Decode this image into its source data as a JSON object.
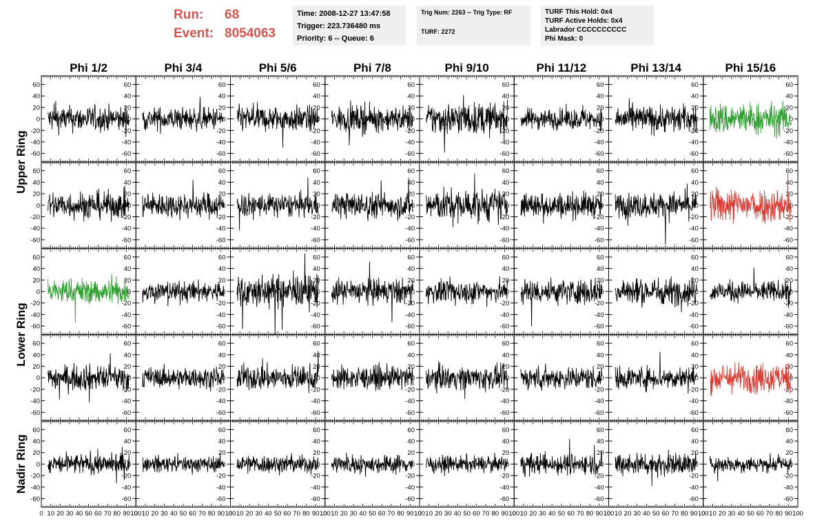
{
  "header": {
    "run_label": "Run:",
    "run_value": "68",
    "event_label": "Event:",
    "event_value": "8054063",
    "time": "Time: 2008-12-27 13:47:58",
    "trigger": "Trigger: 223.736480 ms",
    "priority": "Priority: 6 -- Queue: 6",
    "trig": "Trig Num: 2263 -- Trig Type: RF",
    "turf": "TURF: 2272",
    "turf_hold": "TURF This Hold: 0x4",
    "turf_active": "TURF Active Holds: 0x4",
    "labrador": "Labrador CCCCCCCCCC",
    "phi_mask": "Phi Mask: 0"
  },
  "colors": {
    "normal": "#000000",
    "green": "#2e9e2e",
    "red": "#d93a32",
    "title": "#d9534f",
    "panel": "#efefef"
  },
  "chart_data": {
    "type": "line",
    "columns": [
      "Phi 1/2",
      "Phi 3/4",
      "Phi 5/6",
      "Phi 7/8",
      "Phi 9/10",
      "Phi 11/12",
      "Phi 13/14",
      "Phi 15/16"
    ],
    "ring_labels": [
      "Upper Ring",
      "Lower Ring",
      "Nadir Ring"
    ],
    "rows_per_ring": [
      2,
      2,
      1
    ],
    "xlim": [
      0,
      100
    ],
    "ylim": [
      -75,
      75
    ],
    "x_ticks": [
      0,
      10,
      20,
      30,
      40,
      50,
      60,
      70,
      80,
      90,
      100
    ],
    "x_tick_labels": [
      "0",
      "10",
      "20",
      "30",
      "40",
      "50",
      "60",
      "70",
      "80",
      "90",
      "100"
    ],
    "y_ticks": [
      -60,
      -40,
      -20,
      0,
      20,
      40,
      60
    ],
    "y_tick_labels": [
      "-60",
      "-40",
      "-20",
      "0",
      "20",
      "40",
      "60"
    ],
    "series_amplitude": [
      [
        11,
        10,
        11,
        11,
        14,
        9,
        12,
        14
      ],
      [
        12,
        11,
        10,
        11,
        14,
        11,
        11,
        15
      ],
      [
        11,
        9,
        14,
        11,
        10,
        11,
        12,
        9
      ],
      [
        11,
        9,
        11,
        10,
        10,
        10,
        10,
        13
      ],
      [
        9,
        7,
        8,
        8,
        7,
        9,
        10,
        7
      ]
    ],
    "series_colors": [
      [
        "normal",
        "normal",
        "normal",
        "normal",
        "normal",
        "normal",
        "normal",
        "green"
      ],
      [
        "normal",
        "normal",
        "normal",
        "normal",
        "normal",
        "normal",
        "normal",
        "red"
      ],
      [
        "green",
        "normal",
        "normal",
        "normal",
        "normal",
        "normal",
        "normal",
        "normal"
      ],
      [
        "normal",
        "normal",
        "normal",
        "normal",
        "normal",
        "normal",
        "normal",
        "red"
      ],
      [
        "normal",
        "normal",
        "normal",
        "normal",
        "normal",
        "normal",
        "normal",
        "normal"
      ]
    ]
  }
}
